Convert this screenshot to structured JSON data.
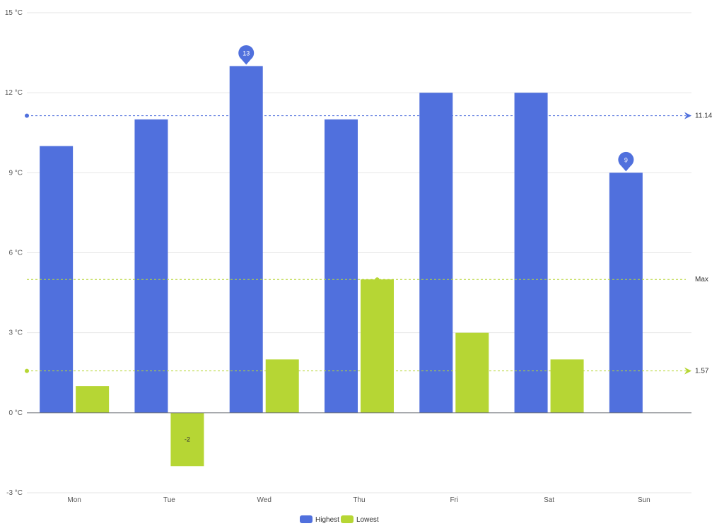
{
  "chart_data": {
    "type": "bar",
    "categories": [
      "Mon",
      "Tue",
      "Wed",
      "Thu",
      "Fri",
      "Sat",
      "Sun"
    ],
    "series": [
      {
        "name": "Highest",
        "values": [
          10,
          11,
          13,
          11,
          12,
          12,
          9
        ],
        "color": "#5070dd"
      },
      {
        "name": "Lowest",
        "values": [
          1,
          -2,
          2,
          5,
          3,
          2,
          null
        ],
        "color": "#b6d634"
      }
    ],
    "ylim": [
      -3,
      15
    ],
    "yticks": [
      -3,
      0,
      3,
      6,
      9,
      12,
      15
    ],
    "y_unit": "°C",
    "y_tick_labels": [
      "-3 °C",
      "0 °C",
      "3 °C",
      "6 °C",
      "9 °C",
      "12 °C",
      "15 °C"
    ],
    "grid": true,
    "legend_position": "bottom-center",
    "mark_points": [
      {
        "series": "Highest",
        "category": "Wed",
        "value": 13,
        "label": "13"
      },
      {
        "series": "Highest",
        "category": "Sun",
        "value": 9,
        "label": "9"
      }
    ],
    "bar_labels": [
      {
        "series": "Lowest",
        "category": "Tue",
        "value": -2,
        "label": "-2"
      }
    ],
    "mark_lines": [
      {
        "series": "Highest",
        "type": "average",
        "value": 11.14,
        "label": "11.14"
      },
      {
        "series": "Lowest",
        "type": "max",
        "value": 5,
        "label": "Max"
      },
      {
        "series": "Lowest",
        "type": "average",
        "value": 1.57,
        "label": "1.57"
      }
    ]
  }
}
